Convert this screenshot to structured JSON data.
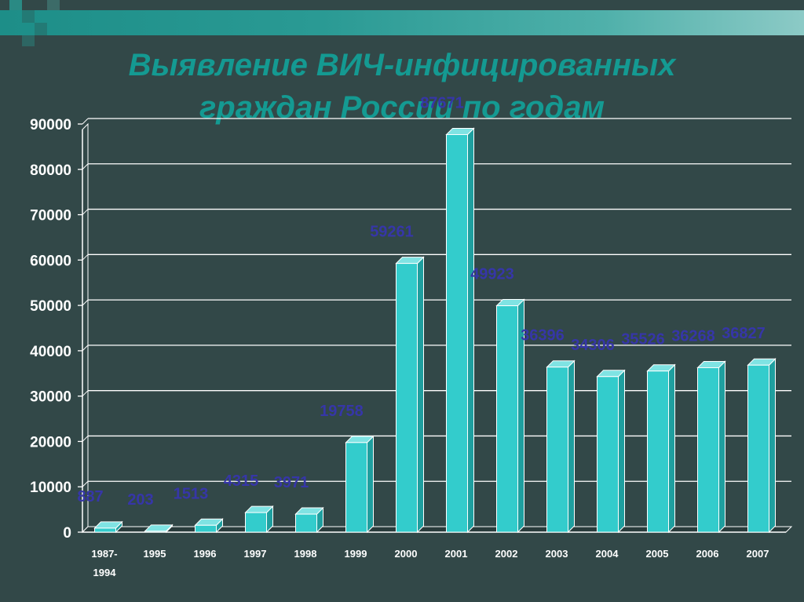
{
  "colors": {
    "background": "#324848",
    "title": "#149a92",
    "bar_front": "#33cccc",
    "bar_side": "#1f9f9f",
    "bar_top": "#7fe3e3",
    "value_label": "#3636a8",
    "axis": "#ffffff"
  },
  "chart_data": {
    "type": "bar",
    "title_lines": [
      "Выявление ВИЧ-инфицированных",
      "граждан России по годам"
    ],
    "categories": [
      [
        "1987-",
        "1994"
      ],
      [
        "1995"
      ],
      [
        "1996"
      ],
      [
        "1997"
      ],
      [
        "1998"
      ],
      [
        "1999"
      ],
      [
        "2000"
      ],
      [
        "2001"
      ],
      [
        "2002"
      ],
      [
        "2003"
      ],
      [
        "2004"
      ],
      [
        "2005"
      ],
      [
        "2006"
      ],
      [
        "2007"
      ]
    ],
    "values": [
      887,
      203,
      1513,
      4315,
      3971,
      19758,
      59261,
      87671,
      49923,
      36396,
      34306,
      35526,
      36268,
      36827
    ],
    "value_labels": [
      "887",
      "203",
      "1513",
      "4315",
      "3971",
      "19758",
      "59261",
      "87671",
      "49923",
      "36396",
      "34306",
      "35526",
      "36268",
      "36827"
    ],
    "yticks": [
      "0",
      "10000",
      "20000",
      "30000",
      "40000",
      "50000",
      "60000",
      "70000",
      "80000",
      "90000"
    ],
    "ylim": [
      0,
      90000
    ],
    "grid": true,
    "legend": "none",
    "style": "3d"
  }
}
